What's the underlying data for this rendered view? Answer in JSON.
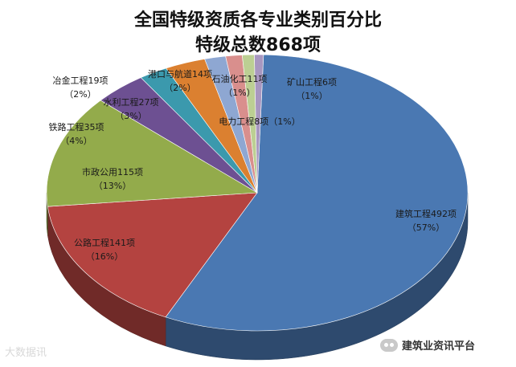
{
  "chart_data": {
    "type": "pie",
    "title": [
      "全国特级资质各专业类别百分比",
      "特级总数868项"
    ],
    "total": 868,
    "slices": [
      {
        "name": "建筑工程",
        "value": 492,
        "label": "建筑工程492项",
        "pct": "（57%）",
        "color": "#4a78b2"
      },
      {
        "name": "公路工程",
        "value": 141,
        "label": "公路工程141项",
        "pct": "（16%）",
        "color": "#b44340"
      },
      {
        "name": "市政公用",
        "value": 115,
        "label": "市政公用115项",
        "pct": "（13%）",
        "color": "#93ab4b"
      },
      {
        "name": "铁路工程",
        "value": 35,
        "label": "铁路工程35项",
        "pct": "（4%）",
        "color": "#6d5092"
      },
      {
        "name": "冶金工程",
        "value": 19,
        "label": "冶金工程19项",
        "pct": "（2%）",
        "color": "#3b99ad"
      },
      {
        "name": "水利工程",
        "value": 27,
        "label": "水利工程27项",
        "pct": "（3%）",
        "color": "#db8030"
      },
      {
        "name": "港口与航道",
        "value": 14,
        "label": "港口与航道14项",
        "pct": "（2%）",
        "color": "#8ea7d2"
      },
      {
        "name": "石油化工",
        "value": 11,
        "label": "石油化工11项",
        "pct": "（1%）",
        "color": "#d98f8d"
      },
      {
        "name": "电力工程",
        "value": 8,
        "label": "电力工程8项",
        "pct": "（1%）",
        "color": "#bccf93"
      },
      {
        "name": "矿山工程",
        "value": 6,
        "label": "矿山工程6项",
        "pct": "（1%）",
        "color": "#a897c0"
      }
    ]
  },
  "watermarks": {
    "left": "大数据讯",
    "right": "建筑业资讯平台"
  }
}
